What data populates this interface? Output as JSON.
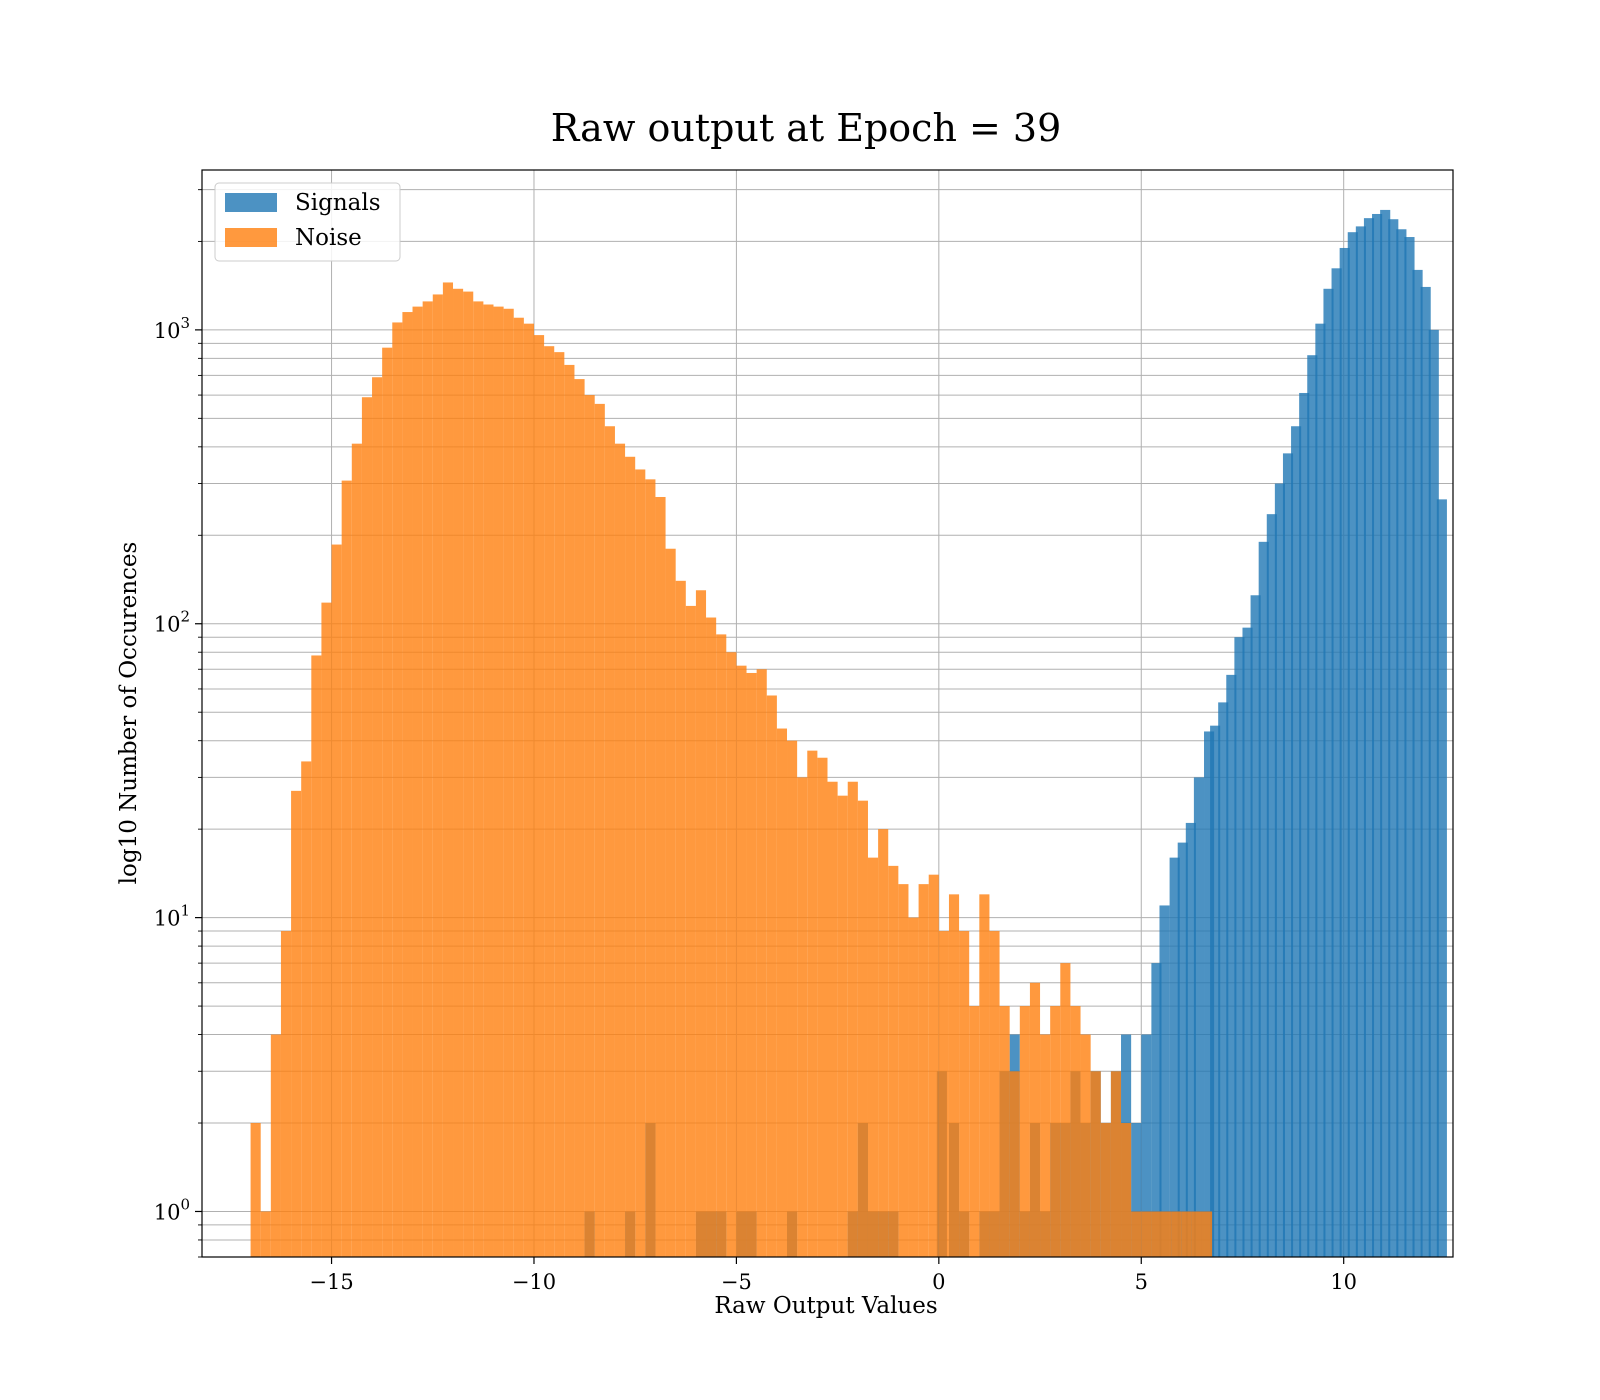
{
  "chart_data": {
    "type": "histogram",
    "title": "Raw output at Epoch = 39",
    "xlabel": "Raw Output Values",
    "ylabel": "log10 Number of Occurences",
    "xlim": [
      -18.2,
      12.7
    ],
    "ylim": [
      0.7,
      3500
    ],
    "yscale": "log",
    "grid": true,
    "legend_position": "upper-left",
    "xticks": [
      -15,
      -10,
      -5,
      0,
      5,
      10
    ],
    "xtick_labels": [
      "−15",
      "−10",
      "−5",
      "0",
      "5",
      "10"
    ],
    "yticks": [
      {
        "value": 1,
        "base": "10",
        "exp": "0"
      },
      {
        "value": 10,
        "base": "10",
        "exp": "1"
      },
      {
        "value": 100,
        "base": "10",
        "exp": "2"
      },
      {
        "value": 1000,
        "base": "10",
        "exp": "3"
      }
    ],
    "bin_width": 0.25,
    "series": [
      {
        "name": "Signals",
        "color": "#1f77b4",
        "opacity": 0.8,
        "bins": [
          [
            -8.75,
            1
          ],
          [
            -7.75,
            1
          ],
          [
            -7.25,
            2
          ],
          [
            -6.0,
            1
          ],
          [
            -5.75,
            1
          ],
          [
            -5.5,
            1
          ],
          [
            -5.0,
            1
          ],
          [
            -4.75,
            1
          ],
          [
            -3.75,
            1
          ],
          [
            -2.25,
            1
          ],
          [
            -2.0,
            2
          ],
          [
            -1.75,
            1
          ],
          [
            -1.5,
            1
          ],
          [
            -1.25,
            1
          ],
          [
            -0.05,
            3
          ],
          [
            0.25,
            2
          ],
          [
            0.5,
            1
          ],
          [
            1.0,
            1
          ],
          [
            1.25,
            1
          ],
          [
            1.5,
            3
          ],
          [
            1.75,
            4
          ],
          [
            2.0,
            1
          ],
          [
            2.25,
            2
          ],
          [
            2.5,
            1
          ],
          [
            2.75,
            2
          ],
          [
            3.0,
            2
          ],
          [
            3.25,
            3
          ],
          [
            3.5,
            2
          ],
          [
            3.75,
            3
          ],
          [
            4.0,
            2
          ],
          [
            4.25,
            3
          ],
          [
            4.5,
            4
          ],
          [
            4.75,
            2
          ],
          [
            5.0,
            4
          ],
          [
            5.25,
            7
          ],
          [
            5.45,
            11
          ],
          [
            5.7,
            16
          ],
          [
            5.9,
            18
          ],
          [
            6.1,
            21
          ],
          [
            6.3,
            30
          ],
          [
            6.55,
            43
          ],
          [
            6.7,
            45
          ],
          [
            6.9,
            54
          ],
          [
            7.1,
            67
          ],
          [
            7.3,
            90
          ],
          [
            7.5,
            97
          ],
          [
            7.7,
            125
          ],
          [
            7.9,
            190
          ],
          [
            8.1,
            236
          ],
          [
            8.3,
            300
          ],
          [
            8.5,
            380
          ],
          [
            8.7,
            470
          ],
          [
            8.9,
            610
          ],
          [
            9.1,
            820
          ],
          [
            9.3,
            1050
          ],
          [
            9.5,
            1380
          ],
          [
            9.7,
            1620
          ],
          [
            9.9,
            1900
          ],
          [
            10.1,
            2150
          ],
          [
            10.3,
            2250
          ],
          [
            10.5,
            2400
          ],
          [
            10.7,
            2480
          ],
          [
            10.9,
            2560
          ],
          [
            11.1,
            2380
          ],
          [
            11.3,
            2200
          ],
          [
            11.5,
            2070
          ],
          [
            11.7,
            1600
          ],
          [
            11.9,
            1400
          ],
          [
            12.1,
            1000
          ],
          [
            12.3,
            265
          ]
        ]
      },
      {
        "name": "Noise",
        "color": "#ff7f0e",
        "opacity": 0.8,
        "bins": [
          [
            -17.0,
            2
          ],
          [
            -16.75,
            1
          ],
          [
            -16.5,
            4
          ],
          [
            -16.25,
            9
          ],
          [
            -16.0,
            27
          ],
          [
            -15.75,
            34
          ],
          [
            -15.5,
            78
          ],
          [
            -15.25,
            118
          ],
          [
            -15.0,
            186
          ],
          [
            -14.75,
            307
          ],
          [
            -14.5,
            410
          ],
          [
            -14.25,
            590
          ],
          [
            -14.0,
            690
          ],
          [
            -13.75,
            870
          ],
          [
            -13.5,
            1060
          ],
          [
            -13.25,
            1150
          ],
          [
            -13.0,
            1200
          ],
          [
            -12.75,
            1250
          ],
          [
            -12.5,
            1320
          ],
          [
            -12.25,
            1450
          ],
          [
            -12.0,
            1380
          ],
          [
            -11.75,
            1350
          ],
          [
            -11.5,
            1250
          ],
          [
            -11.25,
            1220
          ],
          [
            -11.0,
            1200
          ],
          [
            -10.75,
            1180
          ],
          [
            -10.5,
            1100
          ],
          [
            -10.25,
            1050
          ],
          [
            -10.0,
            960
          ],
          [
            -9.75,
            880
          ],
          [
            -9.5,
            840
          ],
          [
            -9.25,
            760
          ],
          [
            -9.0,
            680
          ],
          [
            -8.75,
            600
          ],
          [
            -8.5,
            560
          ],
          [
            -8.25,
            470
          ],
          [
            -8.0,
            410
          ],
          [
            -7.75,
            370
          ],
          [
            -7.5,
            335
          ],
          [
            -7.25,
            310
          ],
          [
            -7.0,
            270
          ],
          [
            -6.75,
            180
          ],
          [
            -6.5,
            140
          ],
          [
            -6.25,
            115
          ],
          [
            -6.0,
            130
          ],
          [
            -5.75,
            105
          ],
          [
            -5.5,
            92
          ],
          [
            -5.25,
            80
          ],
          [
            -5.0,
            72
          ],
          [
            -4.75,
            68
          ],
          [
            -4.5,
            70
          ],
          [
            -4.25,
            57
          ],
          [
            -4.0,
            44
          ],
          [
            -3.75,
            40
          ],
          [
            -3.5,
            30
          ],
          [
            -3.25,
            37
          ],
          [
            -3.0,
            35
          ],
          [
            -2.75,
            29
          ],
          [
            -2.5,
            26
          ],
          [
            -2.25,
            29
          ],
          [
            -2.0,
            25
          ],
          [
            -1.75,
            16
          ],
          [
            -1.5,
            20
          ],
          [
            -1.25,
            15
          ],
          [
            -1.0,
            13
          ],
          [
            -0.75,
            10
          ],
          [
            -0.5,
            13
          ],
          [
            -0.25,
            14
          ],
          [
            0.0,
            9
          ],
          [
            0.25,
            12
          ],
          [
            0.5,
            9
          ],
          [
            0.75,
            5
          ],
          [
            1.0,
            12
          ],
          [
            1.25,
            9
          ],
          [
            1.5,
            5
          ],
          [
            1.75,
            3
          ],
          [
            2.0,
            5
          ],
          [
            2.25,
            6
          ],
          [
            2.5,
            4
          ],
          [
            2.75,
            5
          ],
          [
            3.0,
            7
          ],
          [
            3.25,
            5
          ],
          [
            3.5,
            4
          ],
          [
            3.75,
            3
          ],
          [
            4.0,
            2
          ],
          [
            4.25,
            3
          ],
          [
            4.5,
            2
          ],
          [
            4.75,
            1
          ],
          [
            5.0,
            1
          ],
          [
            5.25,
            1
          ],
          [
            5.5,
            1
          ],
          [
            5.75,
            1
          ],
          [
            6.0,
            1
          ],
          [
            6.25,
            1
          ],
          [
            6.5,
            1
          ]
        ]
      }
    ]
  }
}
